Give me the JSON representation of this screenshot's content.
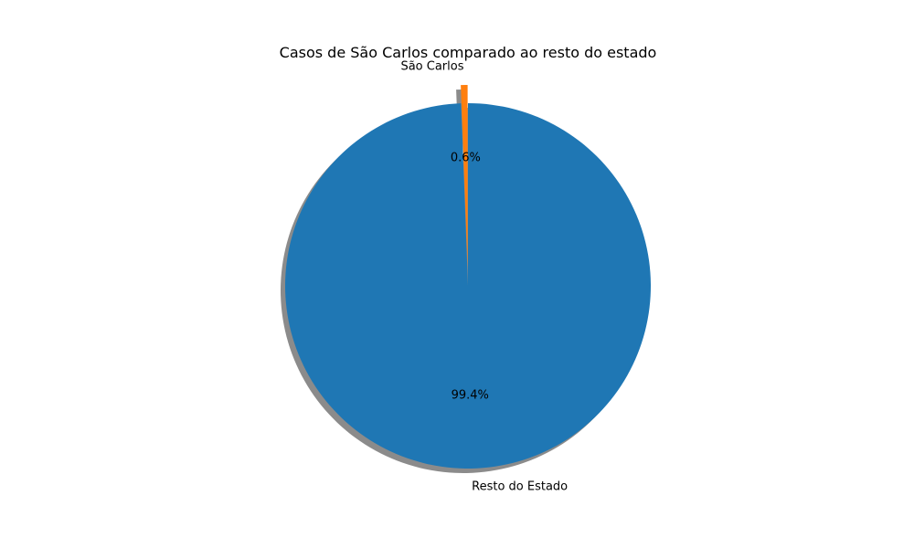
{
  "chart_data": {
    "type": "pie",
    "title": "Casos de São Carlos comparado ao resto do estado",
    "slices": [
      {
        "label": "São Carlos",
        "value": 0.6,
        "pct_label": "0.6%",
        "color": "#ff7f0e",
        "exploded": true
      },
      {
        "label": "Resto do Estado",
        "value": 99.4,
        "pct_label": "99.4%",
        "color": "#1f77b4",
        "exploded": false
      }
    ],
    "shadow": true,
    "start_angle_deg": 90
  }
}
